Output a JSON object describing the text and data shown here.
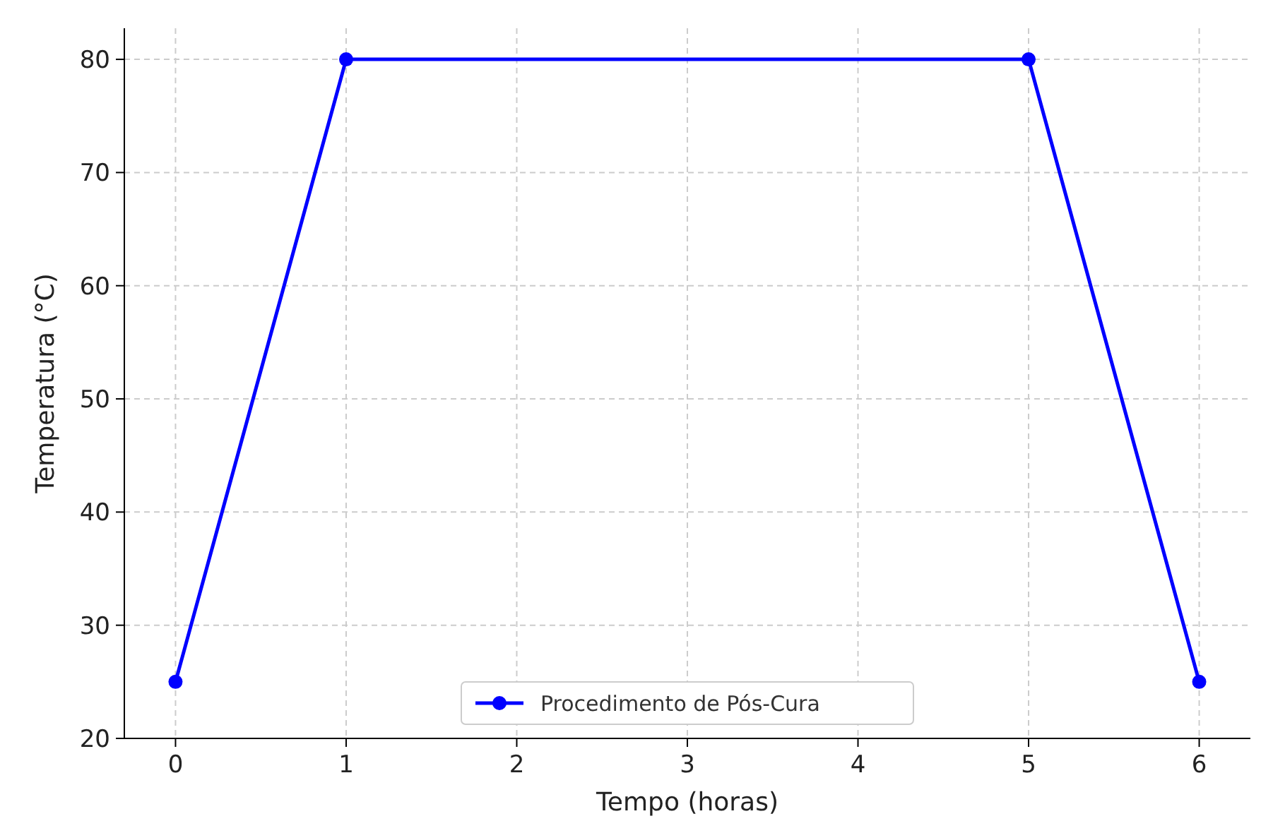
{
  "chart_data": {
    "type": "line",
    "xlabel": "Tempo (horas)",
    "ylabel": "Temperatura (°C)",
    "x": [
      0,
      1,
      5,
      6
    ],
    "series": [
      {
        "name": "Procedimento de Pós-Cura",
        "color": "#0000ff",
        "values": [
          25,
          80,
          80,
          25
        ]
      }
    ],
    "xlim": [
      -0.3,
      6.3
    ],
    "xticks": [
      0,
      1,
      2,
      3,
      4,
      5,
      6
    ],
    "ylim": [
      20,
      82.75
    ],
    "yticks": [
      20,
      30,
      40,
      50,
      60,
      70,
      80
    ],
    "grid": true,
    "legend": "bottom",
    "marker": "circle",
    "line_style": "solid"
  }
}
